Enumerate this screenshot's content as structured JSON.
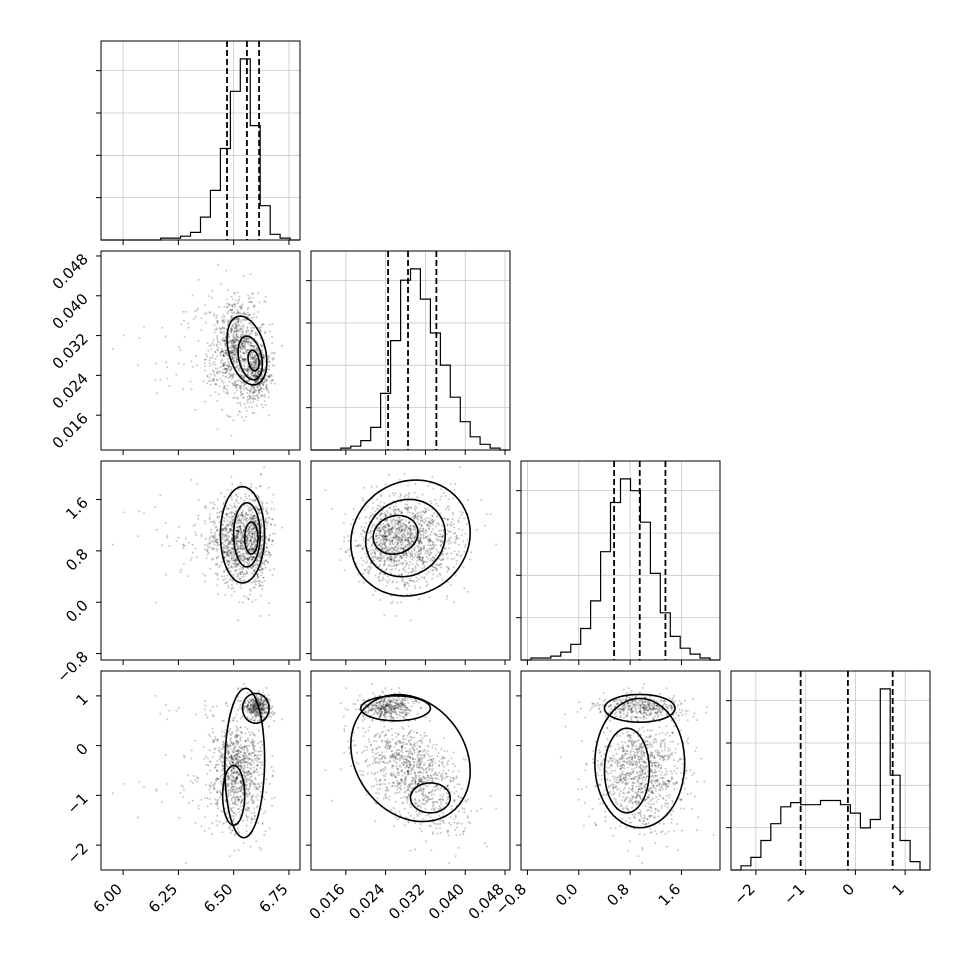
{
  "chart_data": {
    "type": "corner",
    "parameters": [
      {
        "label": "",
        "range": [
          5.9,
          6.8
        ],
        "ticks": [
          6.0,
          6.25,
          6.5,
          6.75
        ],
        "tick_labels": [
          "6.00",
          "6.25",
          "6.50",
          "6.75"
        ],
        "dist": {
          "kind": "gauss",
          "mean": 6.56,
          "sd": 0.07,
          "skew": -0.6
        },
        "quantiles": [
          6.47,
          6.56,
          6.615
        ]
      },
      {
        "label": "",
        "range": [
          0.009,
          0.049
        ],
        "ticks": [
          0.016,
          0.024,
          0.032,
          0.04,
          0.048
        ],
        "tick_labels": [
          "0.016",
          "0.024",
          "0.032",
          "0.040",
          "0.048"
        ],
        "dist": {
          "kind": "gauss",
          "mean": 0.0285,
          "sd": 0.0055,
          "skew": 0.0
        },
        "quantiles": [
          0.0245,
          0.0285,
          0.0342
        ]
      },
      {
        "label": "",
        "range": [
          -0.9,
          2.2
        ],
        "ticks": [
          -0.8,
          0.0,
          0.8,
          1.6
        ],
        "tick_labels": [
          "−0.8",
          "0.0",
          "0.8",
          "1.6"
        ],
        "dist": {
          "kind": "gauss",
          "mean": 0.95,
          "sd": 0.38,
          "skew": 0.0
        },
        "quantiles": [
          0.55,
          0.95,
          1.35
        ]
      },
      {
        "label": "",
        "range": [
          -2.5,
          1.5
        ],
        "ticks": [
          -2,
          -1,
          0,
          1
        ],
        "tick_labels": [
          "−2",
          "−1",
          "0",
          "1"
        ],
        "dist": {
          "kind": "bimodal"
        },
        "quantiles": [
          -1.1,
          -0.15,
          0.75
        ]
      }
    ],
    "histograms": [
      {
        "param": 0,
        "bins": 20,
        "range": [
          5.9,
          6.8
        ],
        "counts": [
          0,
          0,
          0,
          0,
          0,
          0,
          1,
          1,
          2,
          4,
          12,
          26,
          48,
          78,
          95,
          60,
          18,
          3,
          1,
          0
        ]
      },
      {
        "param": 1,
        "bins": 20,
        "range": [
          0.009,
          0.049
        ],
        "counts": [
          0,
          0,
          0,
          1,
          2,
          5,
          12,
          30,
          58,
          90,
          96,
          80,
          62,
          45,
          28,
          15,
          7,
          3,
          1,
          0
        ]
      },
      {
        "param": 2,
        "bins": 20,
        "range": [
          -0.9,
          2.2
        ],
        "counts": [
          0,
          1,
          1,
          2,
          4,
          8,
          16,
          30,
          55,
          80,
          92,
          86,
          70,
          44,
          24,
          12,
          6,
          3,
          1,
          0
        ]
      },
      {
        "param": 3,
        "bins": 20,
        "range": [
          -2.5,
          1.5
        ],
        "counts": [
          0,
          2,
          6,
          14,
          22,
          30,
          32,
          31,
          31,
          33,
          33,
          31,
          27,
          20,
          24,
          86,
          45,
          14,
          4,
          0
        ]
      }
    ],
    "grid": true,
    "samples_per_panel": 1400
  }
}
